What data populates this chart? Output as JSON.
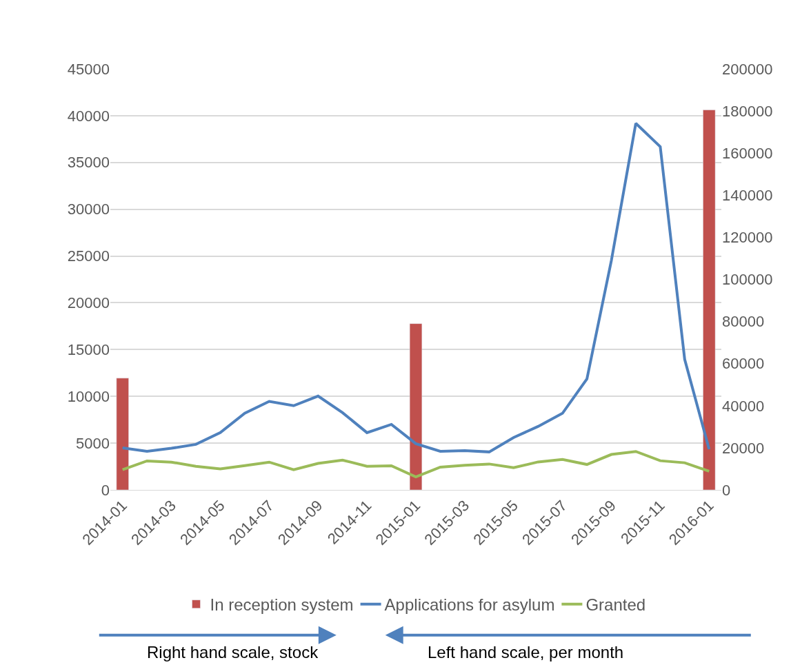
{
  "chart_data": {
    "type": "line",
    "categories": [
      "2014-01",
      null,
      "2014-03",
      null,
      "2014-05",
      null,
      "2014-07",
      null,
      "2014-09",
      null,
      "2014-11",
      null,
      "2015-01",
      null,
      "2015-03",
      null,
      "2015-05",
      null,
      "2015-07",
      null,
      "2015-09",
      null,
      "2015-11",
      null,
      "2016-01"
    ],
    "series": [
      {
        "name": "In reception system",
        "type": "bar",
        "axis": "y2",
        "color": "#c0504d",
        "values": [
          53100,
          null,
          null,
          null,
          null,
          null,
          null,
          null,
          null,
          null,
          null,
          null,
          79000,
          null,
          null,
          null,
          null,
          null,
          null,
          null,
          null,
          null,
          null,
          null,
          180500
        ]
      },
      {
        "name": "Applications for asylum",
        "color": "#4f81bd",
        "values": [
          4500,
          4130,
          4450,
          4870,
          6120,
          8190,
          9460,
          9000,
          10030,
          8260,
          6120,
          7000,
          4940,
          4130,
          4200,
          4060,
          5600,
          6780,
          8190,
          11870,
          24520,
          39180,
          36690,
          13950,
          4350
        ]
      },
      {
        "name": "Granted",
        "color": "#9bbb59",
        "values": [
          2160,
          3100,
          2970,
          2530,
          2240,
          2600,
          2970,
          2160,
          2830,
          3190,
          2530,
          2580,
          1400,
          2430,
          2640,
          2770,
          2370,
          2990,
          3250,
          2720,
          3790,
          4110,
          3120,
          2900,
          2000
        ]
      }
    ],
    "ylim": [
      0,
      45000
    ],
    "yticks": [
      0,
      5000,
      10000,
      15000,
      20000,
      25000,
      30000,
      35000,
      40000,
      45000
    ],
    "y2lim": [
      0,
      200000
    ],
    "y2ticks": [
      0,
      20000,
      40000,
      60000,
      80000,
      100000,
      120000,
      140000,
      160000,
      180000,
      200000
    ],
    "grid": "y",
    "legend": "bottom",
    "marker": "none",
    "line_style": "solid",
    "annotations": [
      "Right hand scale, stock",
      "Left hand scale, per month"
    ]
  }
}
